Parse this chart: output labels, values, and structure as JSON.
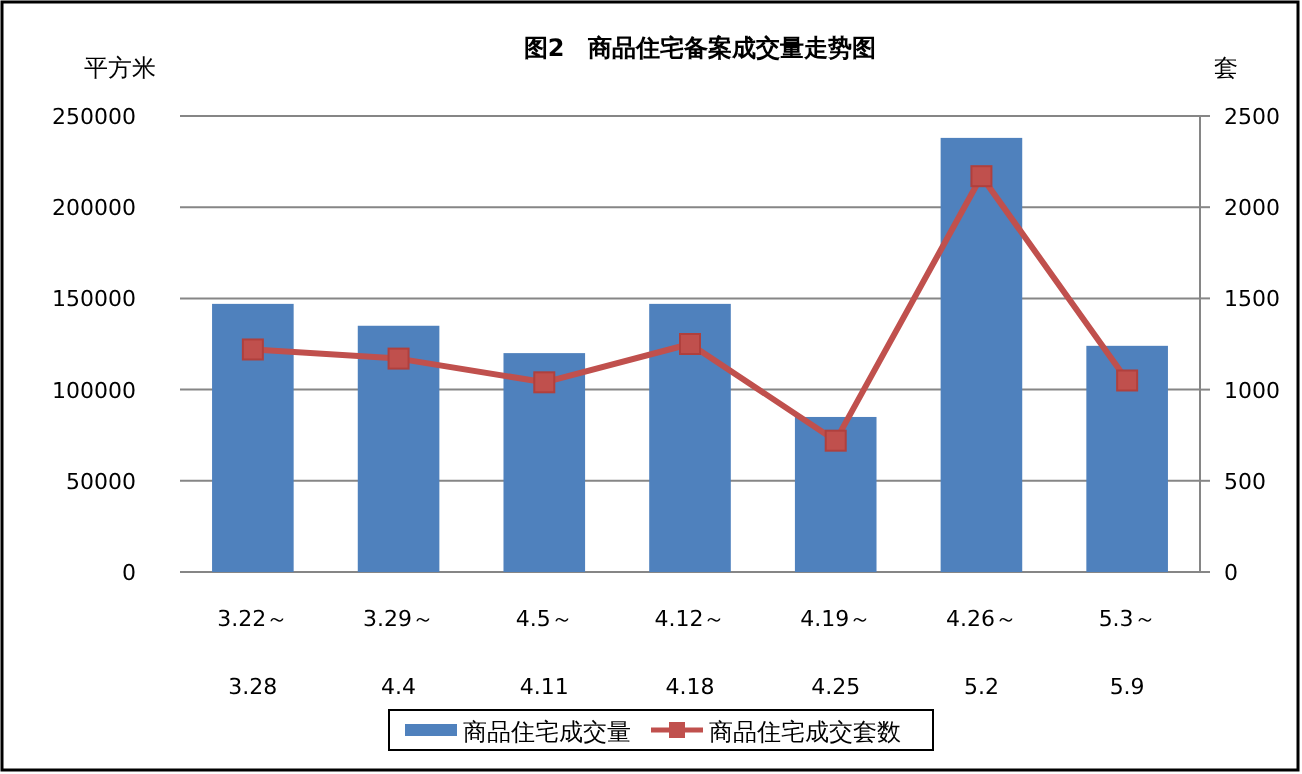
{
  "chart_data": {
    "type": "bar",
    "title": "图2　商品住宅备案成交量走势图",
    "ylabel": "平方米",
    "y2label": "套",
    "categories": [
      "3.22～\n3.28",
      "3.29～\n4.4",
      "4.5～\n4.11",
      "4.12～\n4.18",
      "4.19～\n4.25",
      "4.26～\n5.2",
      "5.3～\n5.9"
    ],
    "series": [
      {
        "name": "商品住宅成交量",
        "color": "#4f81bd",
        "values": [
          147000,
          135000,
          120000,
          147000,
          85000,
          238000,
          124000
        ]
      },
      {
        "name": "商品住宅成交套数",
        "type": "line",
        "axis": "y2",
        "color": "#c0504d",
        "marker": "square",
        "values": [
          1220,
          1170,
          1040,
          1250,
          720,
          2170,
          1050
        ]
      }
    ],
    "ylim": [
      0,
      250000
    ],
    "yticks": [
      0,
      50000,
      100000,
      150000,
      200000,
      250000
    ],
    "y2lim": [
      0,
      2500
    ],
    "y2ticks": [
      0,
      500,
      1000,
      1500,
      2000,
      2500
    ],
    "grid": "y",
    "legend": "bottom"
  }
}
